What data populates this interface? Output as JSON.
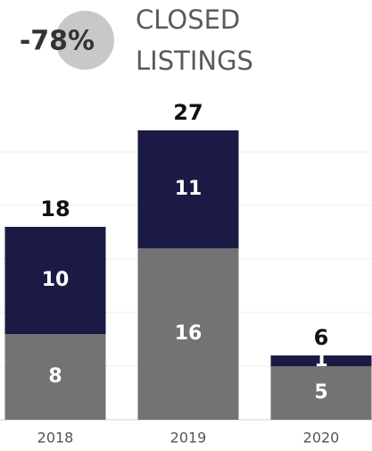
{
  "chart_data": {
    "type": "stacked_bar",
    "title": "CLOSED LISTINGS",
    "badge": "-78%",
    "categories": [
      "2018",
      "2019",
      "2020"
    ],
    "series": [
      {
        "color": "#737373",
        "values": [
          8,
          16,
          5
        ]
      },
      {
        "color": "#1a1a45",
        "values": [
          10,
          11,
          1
        ]
      }
    ],
    "totals": [
      18,
      27,
      6
    ],
    "ylim": [
      0,
      30
    ],
    "yticks": [
      0,
      5,
      10,
      15,
      20,
      25
    ],
    "grid": true
  }
}
